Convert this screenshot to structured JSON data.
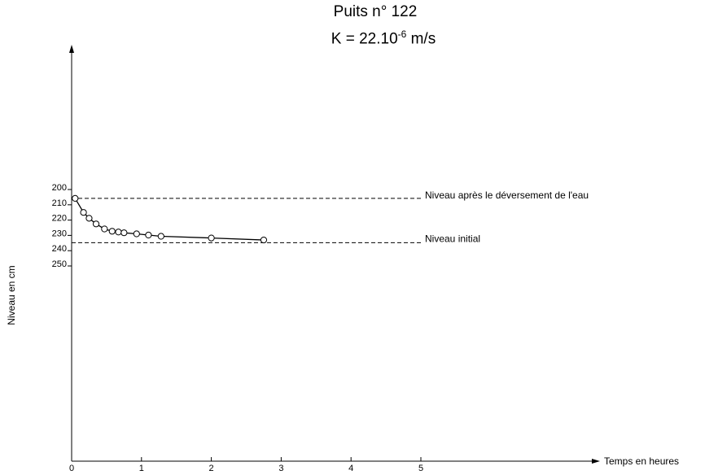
{
  "chart_data": {
    "type": "line",
    "title": "Puits n° 122",
    "subtitle": {
      "prefix": "K = 22.10",
      "exponent": "-6",
      "suffix": " m/s"
    },
    "xlabel": "Temps en heures",
    "ylabel": "Niveau en cm",
    "xlim": [
      0,
      7.6
    ],
    "ylim": [
      200,
      300
    ],
    "y_inverted": true,
    "grid": false,
    "x_ticks": [
      0,
      1,
      2,
      3,
      4,
      5
    ],
    "x_tick_labels": [
      "0",
      "1",
      "2",
      "3",
      "4",
      "5"
    ],
    "y_ticks": [
      200,
      210,
      220,
      230,
      240,
      250
    ],
    "y_tick_labels": [
      "200",
      "210",
      "220",
      "230",
      "240",
      "250"
    ],
    "series": [
      {
        "x": [
          0.05,
          0.17,
          0.25,
          0.35,
          0.47,
          0.58,
          0.67,
          0.75,
          0.93,
          1.1,
          1.28,
          2.0,
          2.75
        ],
        "y": [
          205.8,
          215.0,
          218.8,
          222.5,
          225.8,
          227.3,
          227.8,
          228.3,
          229.0,
          229.8,
          230.6,
          231.7,
          233.0
        ]
      }
    ],
    "reference_lines": [
      {
        "label": "Niveau après le déversement de l'eau",
        "y": 205.8,
        "style": "dashed"
      },
      {
        "label": "Niveau initial",
        "y": 234.8,
        "style": "dashed"
      }
    ]
  }
}
